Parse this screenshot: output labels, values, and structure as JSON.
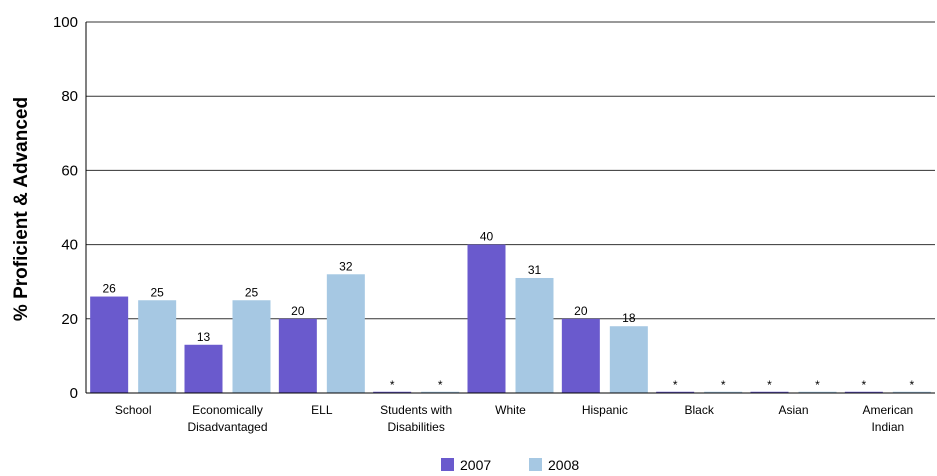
{
  "chart_data": {
    "type": "bar",
    "ylabel": "% Proficient & Advanced",
    "ylim": [
      0,
      100
    ],
    "yticks": [
      0,
      20,
      40,
      60,
      80,
      100
    ],
    "grid": true,
    "legend_position": "bottom",
    "categories": [
      [
        "School"
      ],
      [
        "Economically",
        "Disadvantaged"
      ],
      [
        "ELL"
      ],
      [
        "Students with",
        "Disabilities"
      ],
      [
        "White"
      ],
      [
        "Hispanic"
      ],
      [
        "Black"
      ],
      [
        "Asian"
      ],
      [
        "American",
        "Indian"
      ]
    ],
    "series": [
      {
        "name": "2007",
        "color": "#6a5acd",
        "values": [
          26,
          13,
          20,
          0,
          40,
          20,
          0,
          0,
          0
        ],
        "labels": [
          "26",
          "13",
          "20",
          "*",
          "40",
          "20",
          "*",
          "*",
          "*"
        ]
      },
      {
        "name": "2008",
        "color": "#a6c8e3",
        "values": [
          25,
          25,
          32,
          0,
          31,
          18,
          0,
          0,
          0
        ],
        "labels": [
          "25",
          "25",
          "32",
          "*",
          "31",
          "18",
          "*",
          "*",
          "*"
        ]
      }
    ]
  }
}
